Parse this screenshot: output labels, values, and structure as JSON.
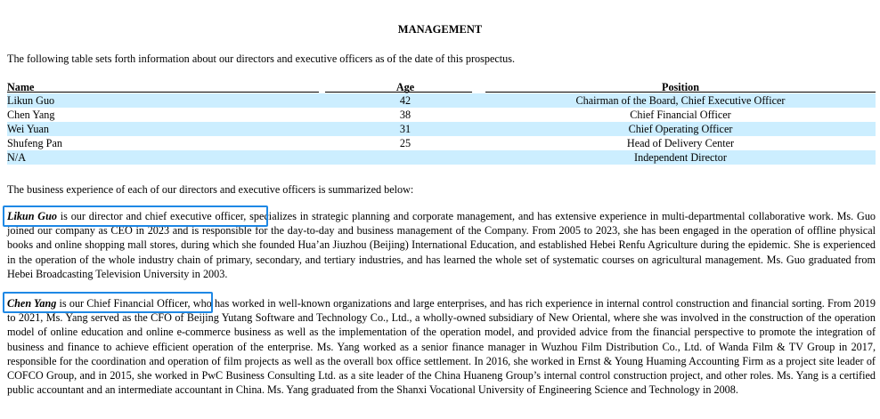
{
  "title": "MANAGEMENT",
  "intro": "The following table sets forth information about our directors and executive officers as of the date of this prospectus.",
  "table": {
    "headers": {
      "name": "Name",
      "age": "Age",
      "position": "Position"
    },
    "rows": [
      {
        "name": "Likun Guo",
        "age": "42",
        "position": "Chairman of the Board, Chief Executive Officer"
      },
      {
        "name": "Chen Yang",
        "age": "38",
        "position": "Chief Financial Officer"
      },
      {
        "name": "Wei Yuan",
        "age": "31",
        "position": "Chief Operating Officer"
      },
      {
        "name": "Shufeng Pan",
        "age": "25",
        "position": "Head of Delivery Center"
      },
      {
        "name": "N/A",
        "age": "",
        "position": "Independent Director"
      }
    ]
  },
  "summary": "The business experience of each of our directors and executive officers is summarized below:",
  "bios": [
    {
      "name": "Likun Guo",
      "role_phrase": " is our director and chief executive officer",
      "body": ", specializes in strategic planning and corporate management, and has extensive experience in multi-departmental collaborative work. Ms. Guo joined our company as CEO in 2023 and is responsible for the day-to-day and business management of the Company. From 2005 to 2023, she has been engaged in the operation of offline physical books and online shopping mall stores, during which she founded Hua’an Jiuzhou (Beijing) International Education, and established Hebei Renfu Agriculture during the epidemic. She is experienced in the operation of the whole industry chain of primary, secondary, and tertiary industries, and has learned the whole set of systematic courses on agricultural management. Ms. Guo graduated from Hebei Broadcasting Television University in 2003."
    },
    {
      "name": "Chen Yang",
      "role_phrase": " is our Chief Financial Officer",
      "body": ", who has worked in well-known organizations and large enterprises, and has rich experience in internal control construction and financial sorting. From 2019 to 2021, Ms. Yang served as the CFO of Beijing Yutang Software and Technology Co., Ltd., a wholly-owned subsidiary of New Oriental, where she was involved in the construction of the operation model of online education and online e-commerce business as well as the implementation of the operation model, and provided advice from the financial perspective to promote the integration of business and finance to achieve efficient operation of the enterprise. Ms. Yang worked as a senior finance manager in Wuzhou Film Distribution Co., Ltd. of Wanda Film & TV Group in 2017, responsible for the coordination and operation of film projects as well as the overall box office settlement. In 2016, she worked in Ernst & Young Huaming Accounting Firm as a project site leader of COFCO Group, and in 2015, she worked in PwC Business Consulting Ltd. as a site leader of the China Huaneng Group’s internal control construction project, and other roles. Ms. Yang is a certified public accountant and an intermediate accountant in China. Ms. Yang graduated from the Shanxi Vocational University of Engineering Science and Technology in 2008."
    }
  ]
}
